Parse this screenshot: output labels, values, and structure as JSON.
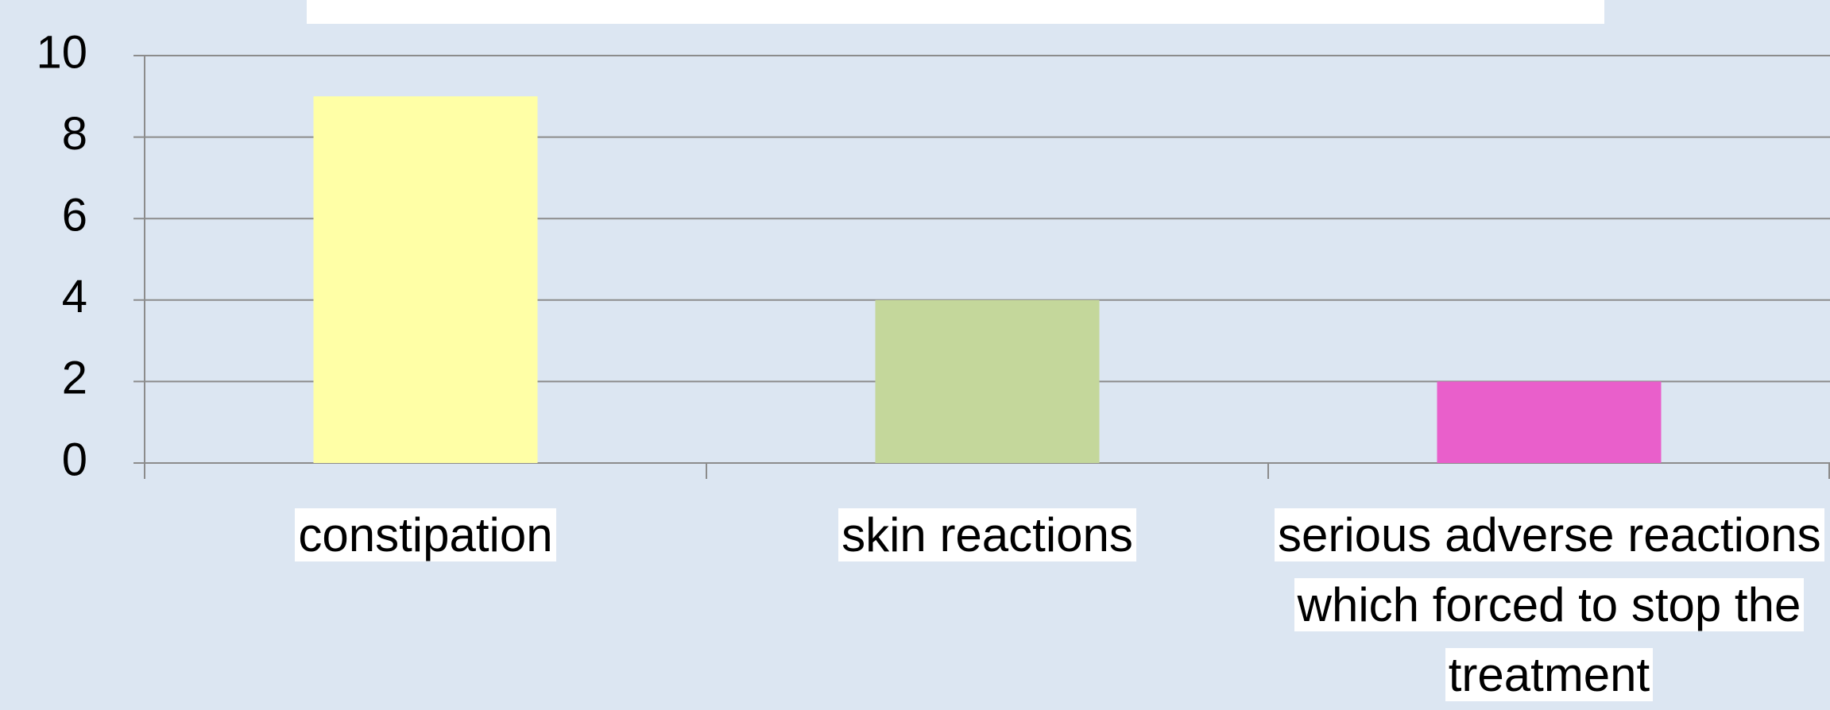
{
  "chart_data": {
    "type": "bar",
    "categories": [
      "constipation",
      "skin reactions",
      "serious adverse reactions which forced to stop the treatment"
    ],
    "values": [
      9,
      4,
      2
    ],
    "colors": [
      "#ffffa6",
      "#c4d79b",
      "#e95fcb"
    ],
    "ylim": [
      0,
      10
    ],
    "yticks": [
      0,
      2,
      4,
      6,
      8,
      10
    ],
    "grid": true
  }
}
